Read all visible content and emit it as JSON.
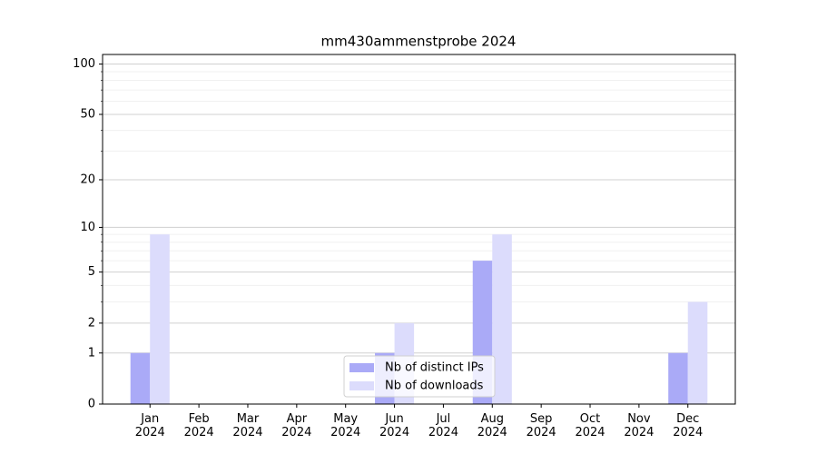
{
  "chart_data": {
    "type": "bar",
    "title": "mm430ammenstprobe 2024",
    "categories": [
      "Jan 2024",
      "Feb 2024",
      "Mar 2024",
      "Apr 2024",
      "May 2024",
      "Jun 2024",
      "Jul 2024",
      "Aug 2024",
      "Sep 2024",
      "Oct 2024",
      "Nov 2024",
      "Dec 2024"
    ],
    "series": [
      {
        "name": "Nb of distinct IPs",
        "color": "#aaaaf7",
        "values": [
          1,
          0,
          0,
          0,
          0,
          1,
          0,
          6,
          0,
          0,
          0,
          1
        ]
      },
      {
        "name": "Nb of downloads",
        "color": "#dcdcfc",
        "values": [
          9,
          0,
          0,
          0,
          0,
          2,
          0,
          9,
          0,
          0,
          0,
          3
        ]
      }
    ],
    "yscale": "log1p",
    "ylim": [
      0,
      114
    ],
    "yticks": [
      0,
      1,
      2,
      5,
      10,
      20,
      50,
      100
    ],
    "yminorticks": [
      3,
      4,
      6,
      7,
      8,
      9,
      30,
      40,
      60,
      70,
      80,
      90
    ],
    "grid": true,
    "legend": "lower center"
  }
}
